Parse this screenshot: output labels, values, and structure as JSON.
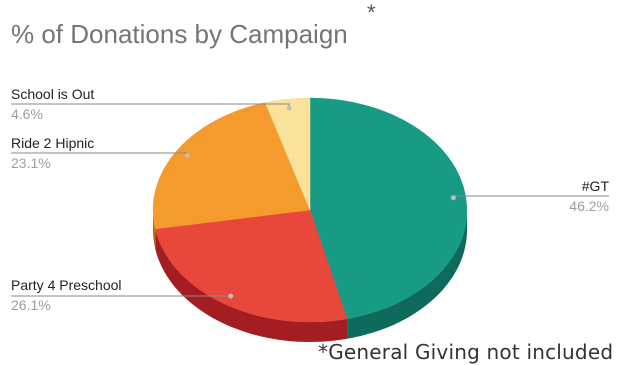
{
  "title": "% of Donations by Campaign",
  "title_marker": "*",
  "footnote": "*General Giving not included",
  "chart_data": {
    "type": "pie",
    "style": "3d",
    "title": "% of Donations by Campaign",
    "legend": "labels outside slices",
    "slices": [
      {
        "label": "#GT",
        "value": 46.2,
        "value_label": "46.2%",
        "color": "#179b84",
        "side_color": "#0e6b5b"
      },
      {
        "label": "Party 4 Preschool",
        "value": 26.1,
        "value_label": "26.1%",
        "color": "#e8473c",
        "side_color": "#a31d22"
      },
      {
        "label": "Ride 2 Hipnic",
        "value": 23.1,
        "value_label": "23.1%",
        "color": "#f59a2c",
        "side_color": "#b86b12"
      },
      {
        "label": "School is Out",
        "value": 4.6,
        "value_label": "4.6%",
        "color": "#fbe29a",
        "side_color": "#c9a94a"
      }
    ]
  }
}
